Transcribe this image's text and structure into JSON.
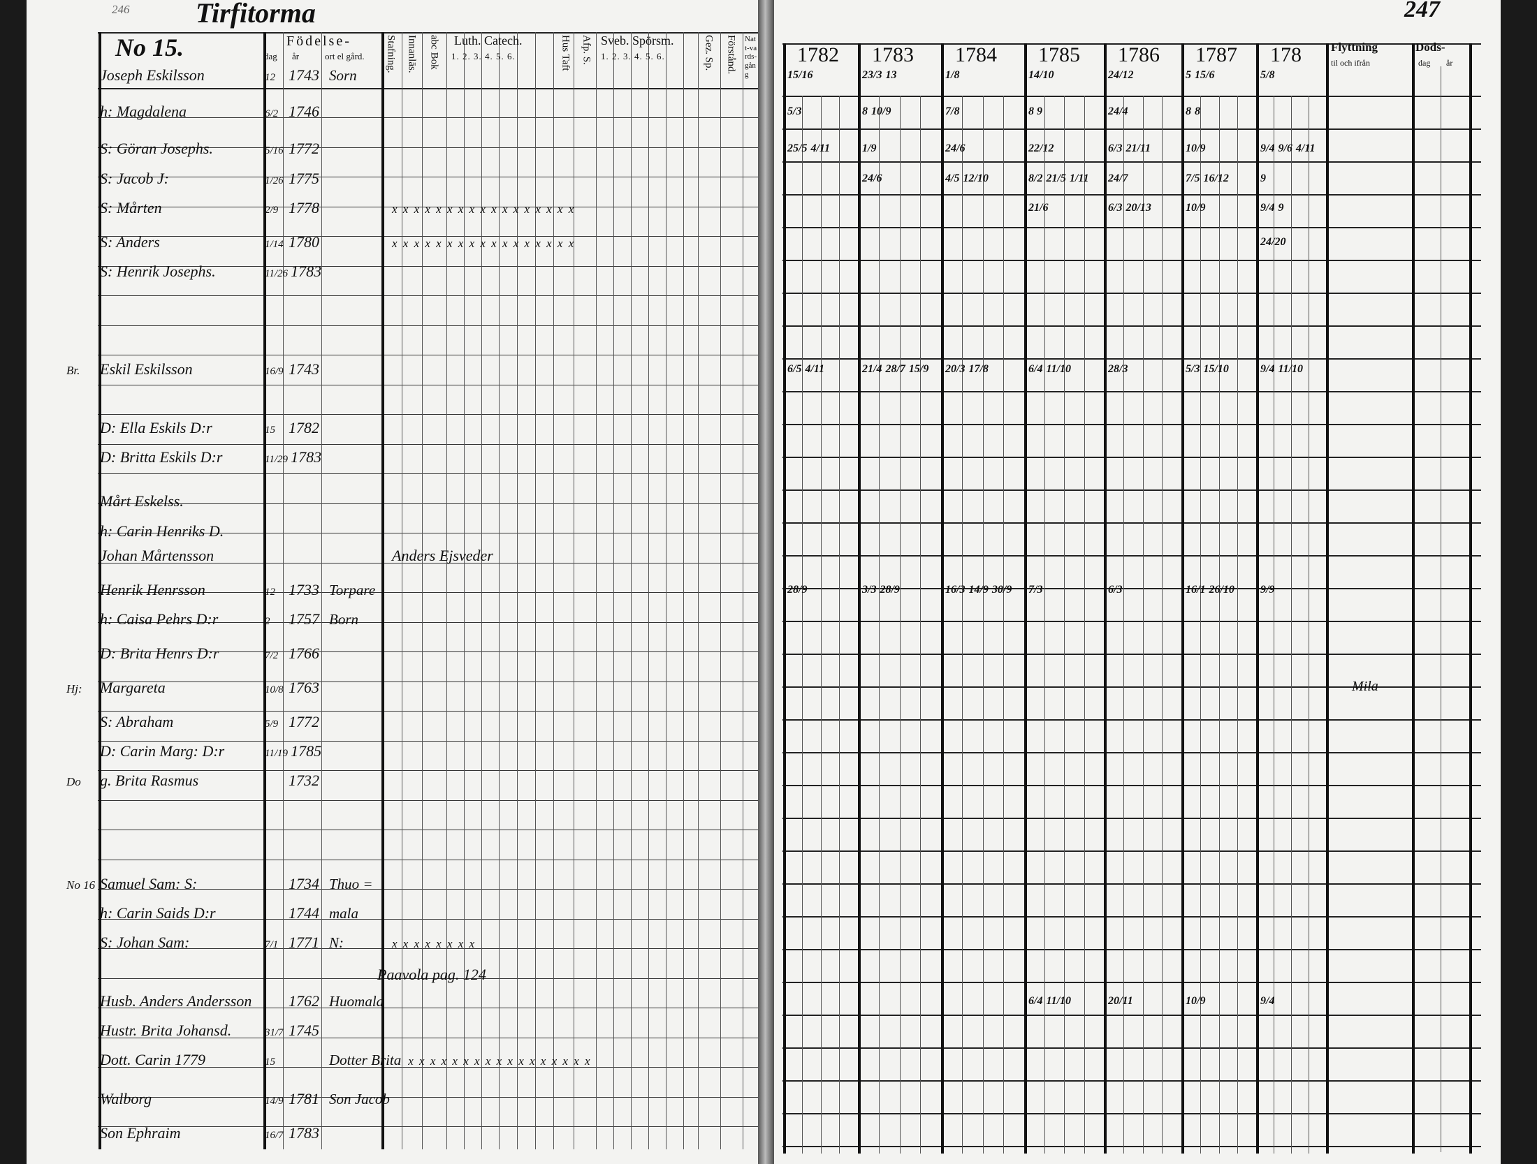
{
  "left_page": {
    "page_number": "246",
    "village": "Tirfitorma",
    "household_number": "No 15.",
    "headers": {
      "birth": "Födelse-",
      "day": "dag",
      "year": "år",
      "place": "ort el gård.",
      "spelling": "Stafning.",
      "reading": "Innanläs.",
      "abc_book": "abc Bok",
      "luth_catech": "Luth. Catech.",
      "luth_parts": "1. 2. 3. 4. 5. 6.",
      "hustaft": "Hus Taft",
      "afp": "Afp. S.",
      "sveb": "Sveb. Spörsm.",
      "sveb_parts": "1. 2. 3. 4. 5. 6.",
      "gez": "Gez. Sp.",
      "forstand": "Förstånd.",
      "nattvard": "Natt-vards-gång"
    },
    "rows": [
      {
        "mark": "",
        "name": "Joseph Eskilsson",
        "day": "12",
        "year": "1743",
        "place": "Sorn"
      },
      {
        "mark": "",
        "name": "h: Magdalena",
        "day": "6/2",
        "year": "1746",
        "place": ""
      },
      {
        "mark": "",
        "name": "S: Göran Josephs.",
        "day": "5/16",
        "year": "1772",
        "place": ""
      },
      {
        "mark": "",
        "name": "S: Jacob J:",
        "day": "1/26",
        "year": "1775",
        "place": ""
      },
      {
        "mark": "",
        "name": "S: Mårten",
        "day": "2/9",
        "year": "1778",
        "place": ""
      },
      {
        "mark": "",
        "name": "S: Anders",
        "day": "1/14",
        "year": "1780",
        "place": ""
      },
      {
        "mark": "",
        "name": "S: Henrik Josephs.",
        "day": "11/26",
        "year": "1783",
        "place": ""
      },
      {
        "mark": "Br.",
        "name": "Eskil Eskilsson",
        "day": "16/9",
        "year": "1743",
        "place": ""
      },
      {
        "mark": "",
        "name": "D: Ella Eskils D:r",
        "day": "15",
        "year": "1782",
        "place": ""
      },
      {
        "mark": "",
        "name": "D: Britta Eskils D:r",
        "day": "11/29",
        "year": "1783",
        "place": ""
      },
      {
        "mark": "",
        "name": "Mårt Eskelss.",
        "day": "",
        "year": "",
        "place": ""
      },
      {
        "mark": "",
        "name": "h: Carin Henriks D.",
        "day": "",
        "year": "",
        "place": ""
      },
      {
        "mark": "",
        "name": "Johan Mårtensson",
        "day": "",
        "year": "",
        "place": ""
      },
      {
        "mark": "",
        "name": "Henrik Henrsson",
        "day": "12",
        "year": "1733",
        "place": "Torpare"
      },
      {
        "mark": "",
        "name": "h: Caisa Pehrs D:r",
        "day": "2",
        "year": "1757",
        "place": "Born"
      },
      {
        "mark": "",
        "name": "D: Brita Henrs D:r",
        "day": "7/2",
        "year": "1766",
        "place": ""
      },
      {
        "mark": "Hj:",
        "name": "Margareta",
        "day": "10/8",
        "year": "1763",
        "place": ""
      },
      {
        "mark": "",
        "name": "S: Abraham",
        "day": "5/9",
        "year": "1772",
        "place": ""
      },
      {
        "mark": "",
        "name": "D: Carin Marg: D:r",
        "day": "11/19",
        "year": "1785",
        "place": ""
      },
      {
        "mark": "Do",
        "name": "g. Brita Rasmus",
        "day": "",
        "year": "1732",
        "place": ""
      },
      {
        "mark": "No 16",
        "name": "Samuel Sam: S:",
        "day": "",
        "year": "1734",
        "place": "Thuo ="
      },
      {
        "mark": "",
        "name": "h: Carin Saids D:r",
        "day": "",
        "year": "1744",
        "place": "mala"
      },
      {
        "mark": "",
        "name": "S: Johan Sam:",
        "day": "7/1",
        "year": "1771",
        "place": "N:"
      },
      {
        "mark": "",
        "name": "Husb. Anders Andersson",
        "day": "",
        "year": "1762",
        "place": "Huomala"
      },
      {
        "mark": "",
        "name": "Hustr. Brita Johansd.",
        "day": "31/7",
        "year": "1745",
        "place": ""
      },
      {
        "mark": "",
        "name": "Dott. Carin   1779",
        "day": "15",
        "year": "",
        "place": "Dotter Brita"
      },
      {
        "mark": "",
        "name": "Walborg",
        "day": "14/9",
        "year": "1781",
        "place": "Son Jacob"
      },
      {
        "mark": "",
        "name": "Son Ephraim",
        "day": "16/7",
        "year": "1783",
        "place": ""
      }
    ],
    "notes": [
      {
        "row": 12,
        "text": "Anders Ejsveder"
      },
      {
        "row": 23,
        "text": "Paavola pag. 124"
      }
    ],
    "tick_marks": [
      {
        "row": 4,
        "text": "x x x x x x x x x x x x x x x x x"
      },
      {
        "row": 5,
        "text": "x x x x x x x x x x x x x x x x x"
      },
      {
        "row": 22,
        "text": "x x x x x x x x"
      },
      {
        "row": 25,
        "text": "x x x x x x x x x x x x x x x x x"
      }
    ]
  },
  "right_page": {
    "page_number": "247",
    "years": [
      "1782",
      "1783",
      "1784",
      "1785",
      "1786",
      "1787",
      "178"
    ],
    "moving_header": "Flyttning",
    "moving_sub": "til och ifrån",
    "death_header": "Döds-",
    "death_day": "dag",
    "death_year": "år",
    "notes": [
      {
        "row": 16,
        "text": "Mila"
      }
    ],
    "entries": [
      {
        "row": 0,
        "col": 0,
        "text": "15/16"
      },
      {
        "row": 0,
        "col": 1,
        "text": "23/3"
      },
      {
        "row": 0,
        "col": 1,
        "text": "13"
      },
      {
        "row": 0,
        "col": 2,
        "text": "1/8"
      },
      {
        "row": 0,
        "col": 3,
        "text": "14/10"
      },
      {
        "row": 0,
        "col": 4,
        "text": "24/12"
      },
      {
        "row": 0,
        "col": 5,
        "text": "5"
      },
      {
        "row": 0,
        "col": 5,
        "text": "15/6"
      },
      {
        "row": 0,
        "col": 6,
        "text": "5/8"
      },
      {
        "row": 1,
        "col": 0,
        "text": "5/3"
      },
      {
        "row": 1,
        "col": 1,
        "text": "8"
      },
      {
        "row": 1,
        "col": 1,
        "text": "10/9"
      },
      {
        "row": 1,
        "col": 2,
        "text": "7/8"
      },
      {
        "row": 1,
        "col": 3,
        "text": "8 9"
      },
      {
        "row": 1,
        "col": 4,
        "text": "24/4"
      },
      {
        "row": 1,
        "col": 5,
        "text": "8"
      },
      {
        "row": 1,
        "col": 5,
        "text": "8"
      },
      {
        "row": 2,
        "col": 0,
        "text": "25/5"
      },
      {
        "row": 2,
        "col": 0,
        "text": "4/11"
      },
      {
        "row": 2,
        "col": 1,
        "text": "1/9"
      },
      {
        "row": 2,
        "col": 2,
        "text": "24/6"
      },
      {
        "row": 2,
        "col": 3,
        "text": "22/12"
      },
      {
        "row": 2,
        "col": 4,
        "text": "6/3"
      },
      {
        "row": 2,
        "col": 4,
        "text": "21/11"
      },
      {
        "row": 2,
        "col": 5,
        "text": "10/9"
      },
      {
        "row": 2,
        "col": 6,
        "text": "9/4"
      },
      {
        "row": 2,
        "col": 6,
        "text": "9/6"
      },
      {
        "row": 2,
        "col": 6,
        "text": "4/11"
      },
      {
        "row": 3,
        "col": 1,
        "text": "24/6"
      },
      {
        "row": 3,
        "col": 2,
        "text": "4/5"
      },
      {
        "row": 3,
        "col": 2,
        "text": "12/10"
      },
      {
        "row": 3,
        "col": 3,
        "text": "8/2"
      },
      {
        "row": 3,
        "col": 3,
        "text": "21/5"
      },
      {
        "row": 3,
        "col": 3,
        "text": "1/11"
      },
      {
        "row": 3,
        "col": 4,
        "text": "24/7"
      },
      {
        "row": 3,
        "col": 5,
        "text": "7/5"
      },
      {
        "row": 3,
        "col": 5,
        "text": "16/12"
      },
      {
        "row": 3,
        "col": 6,
        "text": "9"
      },
      {
        "row": 4,
        "col": 3,
        "text": "21/6"
      },
      {
        "row": 4,
        "col": 4,
        "text": "6/3"
      },
      {
        "row": 4,
        "col": 4,
        "text": "20/13"
      },
      {
        "row": 4,
        "col": 5,
        "text": "10/9"
      },
      {
        "row": 4,
        "col": 6,
        "text": "9/4"
      },
      {
        "row": 4,
        "col": 6,
        "text": "9"
      },
      {
        "row": 5,
        "col": 6,
        "text": "24/20"
      },
      {
        "row": 7,
        "col": 0,
        "text": "6/5"
      },
      {
        "row": 7,
        "col": 0,
        "text": "4/11"
      },
      {
        "row": 7,
        "col": 1,
        "text": "21/4"
      },
      {
        "row": 7,
        "col": 1,
        "text": "28/7"
      },
      {
        "row": 7,
        "col": 1,
        "text": "15/9"
      },
      {
        "row": 7,
        "col": 2,
        "text": "20/3"
      },
      {
        "row": 7,
        "col": 2,
        "text": "17/8"
      },
      {
        "row": 7,
        "col": 3,
        "text": "6/4"
      },
      {
        "row": 7,
        "col": 3,
        "text": "11/10"
      },
      {
        "row": 7,
        "col": 4,
        "text": "28/3"
      },
      {
        "row": 7,
        "col": 5,
        "text": "5/3"
      },
      {
        "row": 7,
        "col": 5,
        "text": "15/10"
      },
      {
        "row": 7,
        "col": 6,
        "text": "9/4"
      },
      {
        "row": 7,
        "col": 6,
        "text": "11/10"
      },
      {
        "row": 13,
        "col": 0,
        "text": "28/9"
      },
      {
        "row": 13,
        "col": 1,
        "text": "3/3"
      },
      {
        "row": 13,
        "col": 1,
        "text": "28/9"
      },
      {
        "row": 13,
        "col": 2,
        "text": "16/3"
      },
      {
        "row": 13,
        "col": 2,
        "text": "14/9"
      },
      {
        "row": 13,
        "col": 2,
        "text": "30/9"
      },
      {
        "row": 13,
        "col": 3,
        "text": "7/3"
      },
      {
        "row": 13,
        "col": 4,
        "text": "6/3"
      },
      {
        "row": 13,
        "col": 5,
        "text": "16/1"
      },
      {
        "row": 13,
        "col": 5,
        "text": "26/10"
      },
      {
        "row": 13,
        "col": 6,
        "text": "9/9"
      },
      {
        "row": 23,
        "col": 3,
        "text": "6/4"
      },
      {
        "row": 23,
        "col": 3,
        "text": "11/10"
      },
      {
        "row": 23,
        "col": 4,
        "text": "20/11"
      },
      {
        "row": 23,
        "col": 5,
        "text": "10/9"
      },
      {
        "row": 23,
        "col": 6,
        "text": "9/4"
      }
    ]
  }
}
